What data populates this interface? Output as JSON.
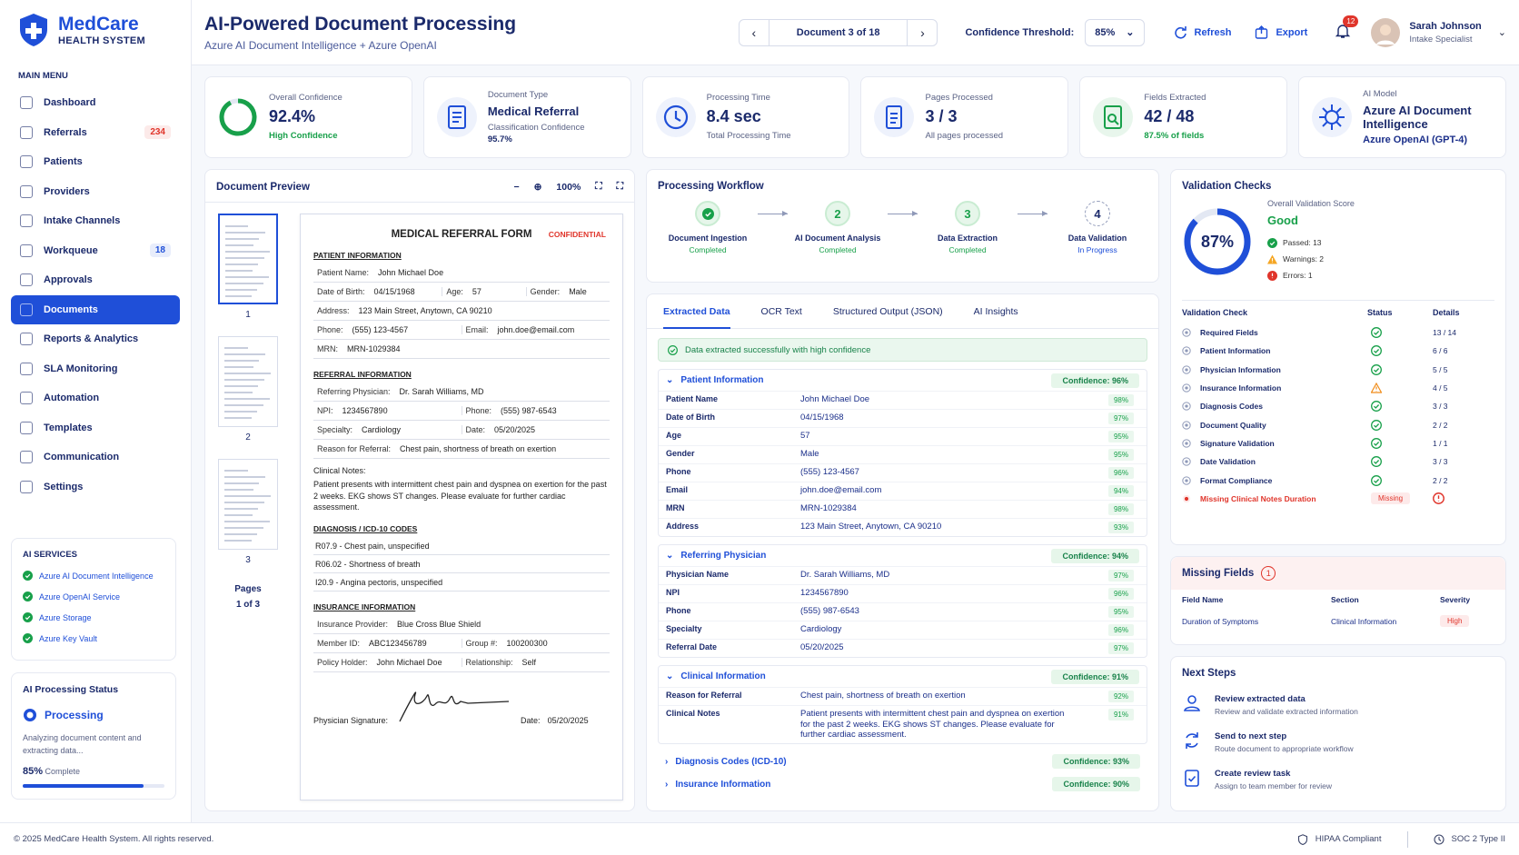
{
  "sidebar": {
    "brand": "MedCare",
    "brand_sub": "HEALTH SYSTEM",
    "menu_title": "MAIN MENU",
    "menu": [
      {
        "label": "Dashboard"
      },
      {
        "label": "Referrals",
        "badge": "234",
        "badge_color": "#e0352b"
      },
      {
        "label": "Patients"
      },
      {
        "label": "Providers"
      },
      {
        "label": "Intake Channels"
      },
      {
        "label": "Workqueue",
        "badge": "18",
        "badge_color": "#1f4fd8"
      },
      {
        "label": "Approvals"
      },
      {
        "label": "Documents",
        "active": true
      },
      {
        "label": "Reports & Analytics"
      },
      {
        "label": "SLA Monitoring"
      },
      {
        "label": "Automation"
      },
      {
        "label": "Templates"
      },
      {
        "label": "Communication"
      },
      {
        "label": "Settings"
      }
    ],
    "ai_services_title": "AI SERVICES",
    "ai_services": [
      "Azure AI Document Intelligence",
      "Azure OpenAI Service",
      "Azure Storage",
      "Azure Key Vault"
    ],
    "status_title": "AI Processing Status",
    "status": "Processing",
    "status_desc": "Analyzing document content and extracting data...",
    "progress": {
      "value": 85,
      "label": "85%"
    },
    "progress_suffix": "Complete"
  },
  "header": {
    "title": "AI-Powered Document Processing",
    "subtitle": "Azure AI Document Intelligence + Azure OpenAI",
    "doc_nav": "Document 3 of 18",
    "threshold_label": "Confidence Threshold:",
    "threshold": "85%",
    "refresh": "Refresh",
    "export": "Export",
    "notifications": "12",
    "user": "Sarah Johnson",
    "role": "Intake Specialist"
  },
  "stats": [
    {
      "label": "Overall Confidence",
      "value": {
        "value": 92.4,
        "label": "92.4%"
      },
      "notes": [
        "High Confidence"
      ],
      "note_color": "#18a04a"
    },
    {
      "label": "Document Type",
      "value": "Medical Referral",
      "notes": [
        "Classification Confidence",
        "95.7%"
      ]
    },
    {
      "label": "Processing Time",
      "value": "8.4 sec",
      "notes": [
        "Total Processing Time"
      ]
    },
    {
      "label": "Pages Processed",
      "value": "3 / 3",
      "notes": [
        "All pages processed"
      ]
    },
    {
      "label": "Fields Extracted",
      "value": "42 / 48",
      "notes": [
        "87.5% of fields"
      ],
      "note_color": "#18a04a"
    },
    {
      "label": "AI Model",
      "value": "Azure AI Document Intelligence",
      "notes": [
        "Azure OpenAI (GPT-4)"
      ],
      "note_color": "#1b2f8a"
    }
  ],
  "preview": {
    "title": "Document Preview",
    "zoom": "100%",
    "thumbs": [
      "1",
      "2",
      "3"
    ],
    "pages_label": "Pages",
    "pages": "1 of 3",
    "form": {
      "title": "MEDICAL REFERRAL FORM",
      "confidential": "CONFIDENTIAL",
      "sections": [
        {
          "heading": "PATIENT INFORMATION",
          "rows": [
            [
              [
                "Patient Name:",
                "John Michael Doe"
              ]
            ],
            [
              [
                "Date of Birth:",
                "04/15/1968"
              ],
              [
                "Age:",
                "57"
              ],
              [
                "Gender:",
                "Male"
              ]
            ],
            [
              [
                "Address:",
                "123 Main Street, Anytown, CA 90210"
              ]
            ],
            [
              [
                "Phone:",
                "(555) 123-4567"
              ],
              [
                "Email:",
                "john.doe@email.com"
              ]
            ],
            [
              [
                "MRN:",
                "MRN-1029384"
              ]
            ]
          ]
        },
        {
          "heading": "REFERRAL INFORMATION",
          "rows": [
            [
              [
                "Referring Physician:",
                "Dr. Sarah Williams, MD"
              ]
            ],
            [
              [
                "NPI:",
                "1234567890"
              ],
              [
                "Phone:",
                "(555) 987-6543"
              ]
            ],
            [
              [
                "Specialty:",
                "Cardiology"
              ],
              [
                "Date:",
                "05/20/2025"
              ]
            ],
            [
              [
                "Reason for Referral:",
                "Chest pain, shortness of breath on exertion"
              ]
            ]
          ],
          "notes_label": "Clinical Notes:",
          "notes": "Patient presents with intermittent chest pain and dyspnea on exertion for the past 2 weeks. EKG shows ST changes. Please evaluate for further cardiac assessment."
        },
        {
          "heading": "DIAGNOSIS / ICD-10 CODES",
          "lines": [
            "R07.9 - Chest pain, unspecified",
            "R06.02 - Shortness of breath",
            "I20.9 - Angina pectoris, unspecified"
          ]
        },
        {
          "heading": "INSURANCE INFORMATION",
          "rows": [
            [
              [
                "Insurance Provider:",
                "Blue Cross Blue Shield"
              ]
            ],
            [
              [
                "Member ID:",
                "ABC123456789"
              ],
              [
                "Group #:",
                "100200300"
              ]
            ],
            [
              [
                "Policy Holder:",
                "John Michael Doe"
              ],
              [
                "Relationship:",
                "Self"
              ]
            ]
          ]
        }
      ],
      "signature_label": "Physician Signature:",
      "date_label": "Date:",
      "date": "05/20/2025"
    }
  },
  "workflow": {
    "title": "Processing Workflow",
    "steps": [
      {
        "name": "Document Ingestion",
        "status": "Completed"
      },
      {
        "number": "2",
        "name": "AI Document Analysis",
        "status": "Completed"
      },
      {
        "number": "3",
        "name": "Data Extraction",
        "status": "Completed"
      },
      {
        "number": "4",
        "name": "Data Validation",
        "status": "In Progress",
        "pending": true
      }
    ]
  },
  "extracted": {
    "tabs": [
      "Extracted Data",
      "OCR Text",
      "Structured Output (JSON)",
      "AI Insights"
    ],
    "success": "Data extracted successfully with high confidence",
    "groups": [
      {
        "name": "Patient Information",
        "confidence": "Confidence: 96%",
        "expanded": true,
        "fields": [
          [
            "Patient Name",
            "John Michael Doe",
            "98%"
          ],
          [
            "Date of Birth",
            "04/15/1968",
            "97%"
          ],
          [
            "Age",
            "57",
            "95%"
          ],
          [
            "Gender",
            "Male",
            "95%"
          ],
          [
            "Phone",
            "(555) 123-4567",
            "96%"
          ],
          [
            "Email",
            "john.doe@email.com",
            "94%"
          ],
          [
            "MRN",
            "MRN-1029384",
            "98%"
          ],
          [
            "Address",
            "123 Main Street, Anytown, CA 90210",
            "93%"
          ]
        ]
      },
      {
        "name": "Referring Physician",
        "confidence": "Confidence: 94%",
        "expanded": true,
        "fields": [
          [
            "Physician Name",
            "Dr. Sarah Williams, MD",
            "97%"
          ],
          [
            "NPI",
            "1234567890",
            "96%"
          ],
          [
            "Phone",
            "(555) 987-6543",
            "95%"
          ],
          [
            "Specialty",
            "Cardiology",
            "96%"
          ],
          [
            "Referral Date",
            "05/20/2025",
            "97%"
          ]
        ]
      },
      {
        "name": "Clinical Information",
        "confidence": "Confidence: 91%",
        "expanded": true,
        "fields": [
          [
            "Reason for Referral",
            "Chest pain, shortness of breath on exertion",
            "92%"
          ],
          [
            "Clinical Notes",
            "Patient presents with intermittent chest pain and dyspnea on exertion for the past 2 weeks. EKG shows ST changes. Please evaluate for further cardiac assessment.",
            "91%"
          ]
        ]
      },
      {
        "name": "Diagnosis Codes (ICD-10)",
        "confidence": "Confidence: 93%",
        "expanded": false
      },
      {
        "name": "Insurance Information",
        "confidence": "Confidence: 90%",
        "expanded": false
      }
    ]
  },
  "validation": {
    "title": "Validation Checks",
    "score_label": "Overall Validation Score",
    "score": {
      "value": 87,
      "label": "87%"
    },
    "rating": "Good",
    "summary": [
      {
        "text": "Passed: 13",
        "status": "pass"
      },
      {
        "text": "Warnings: 2",
        "status": "warn"
      },
      {
        "text": "Errors: 1",
        "status": "error"
      }
    ],
    "columns": [
      "Validation Check",
      "Status",
      "Details"
    ],
    "rows": [
      {
        "name": "Required Fields",
        "status": "pass",
        "details": "13 / 14"
      },
      {
        "name": "Patient Information",
        "status": "pass",
        "details": "6 / 6"
      },
      {
        "name": "Physician Information",
        "status": "pass",
        "details": "5 / 5"
      },
      {
        "name": "Insurance Information",
        "status": "warn",
        "details": "4 / 5"
      },
      {
        "name": "Diagnosis Codes",
        "status": "pass",
        "details": "3 / 3"
      },
      {
        "name": "Document Quality",
        "status": "pass",
        "details": "2 / 2"
      },
      {
        "name": "Signature Validation",
        "status": "pass",
        "details": "1 / 1"
      },
      {
        "name": "Date Validation",
        "status": "pass",
        "details": "3 / 3"
      },
      {
        "name": "Format Compliance",
        "status": "pass",
        "details": "2 / 2"
      },
      {
        "name": "Missing Clinical Notes Duration",
        "status": "error",
        "badge": "Missing"
      }
    ]
  },
  "missing": {
    "title": "Missing Fields",
    "count": "1",
    "columns": [
      "Field Name",
      "Section",
      "Severity"
    ],
    "rows": [
      [
        "Duration of Symptoms",
        "Clinical Information",
        "High"
      ]
    ]
  },
  "next_steps": {
    "title": "Next Steps",
    "items": [
      {
        "title": "Review extracted data",
        "desc": "Review and validate extracted information"
      },
      {
        "title": "Send to next step",
        "desc": "Route document to appropriate workflow"
      },
      {
        "title": "Create review task",
        "desc": "Assign to team member for review"
      }
    ]
  },
  "footer": {
    "copyright": "© 2025 MedCare Health System.  All rights reserved.",
    "badges": [
      "HIPAA Compliant",
      "SOC 2 Type II"
    ]
  }
}
